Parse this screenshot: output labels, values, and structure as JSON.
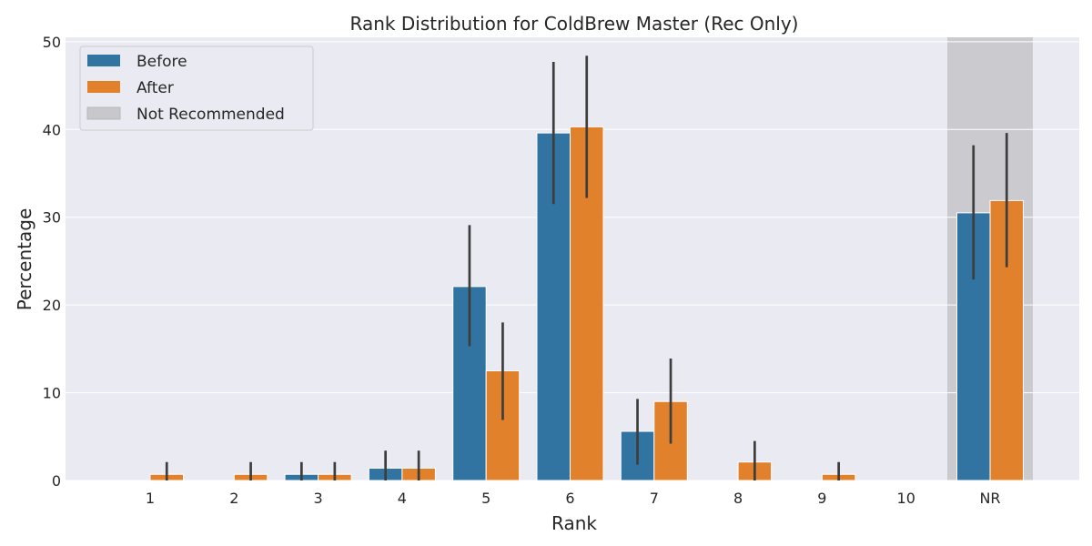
{
  "chart_data": {
    "type": "bar",
    "title": "Rank Distribution for ColdBrew Master (Rec Only)",
    "xlabel": "Rank",
    "ylabel": "Percentage",
    "categories": [
      "1",
      "2",
      "3",
      "4",
      "5",
      "6",
      "7",
      "8",
      "9",
      "10",
      "NR"
    ],
    "ylim": [
      0,
      50.5
    ],
    "yticks": [
      0,
      10,
      20,
      30,
      40,
      50
    ],
    "grid": true,
    "legend_position": "top-left",
    "series": [
      {
        "name": "Before",
        "color": "#3274a1",
        "values": [
          0,
          0,
          0.7,
          1.4,
          22.1,
          39.6,
          5.6,
          0,
          0,
          0,
          30.5
        ],
        "ci_low": [
          0,
          0,
          0,
          0,
          15.3,
          31.5,
          1.8,
          0,
          0,
          0,
          22.9
        ],
        "ci_high": [
          0,
          0,
          2.1,
          3.4,
          29.1,
          47.7,
          9.3,
          0,
          0,
          0,
          38.2
        ]
      },
      {
        "name": "After",
        "color": "#e1812c",
        "values": [
          0.7,
          0.7,
          0.7,
          1.4,
          12.5,
          40.3,
          9.0,
          2.1,
          0.7,
          0,
          31.9
        ],
        "ci_low": [
          0,
          0,
          0,
          0,
          6.9,
          32.2,
          4.2,
          0,
          0,
          0,
          24.3
        ],
        "ci_high": [
          2.1,
          2.1,
          2.1,
          3.4,
          18.0,
          48.4,
          13.9,
          4.5,
          2.1,
          0,
          39.6
        ]
      }
    ],
    "highlight": {
      "category": "NR",
      "label": "Not Recommended",
      "color": "#c8c8cc"
    }
  }
}
